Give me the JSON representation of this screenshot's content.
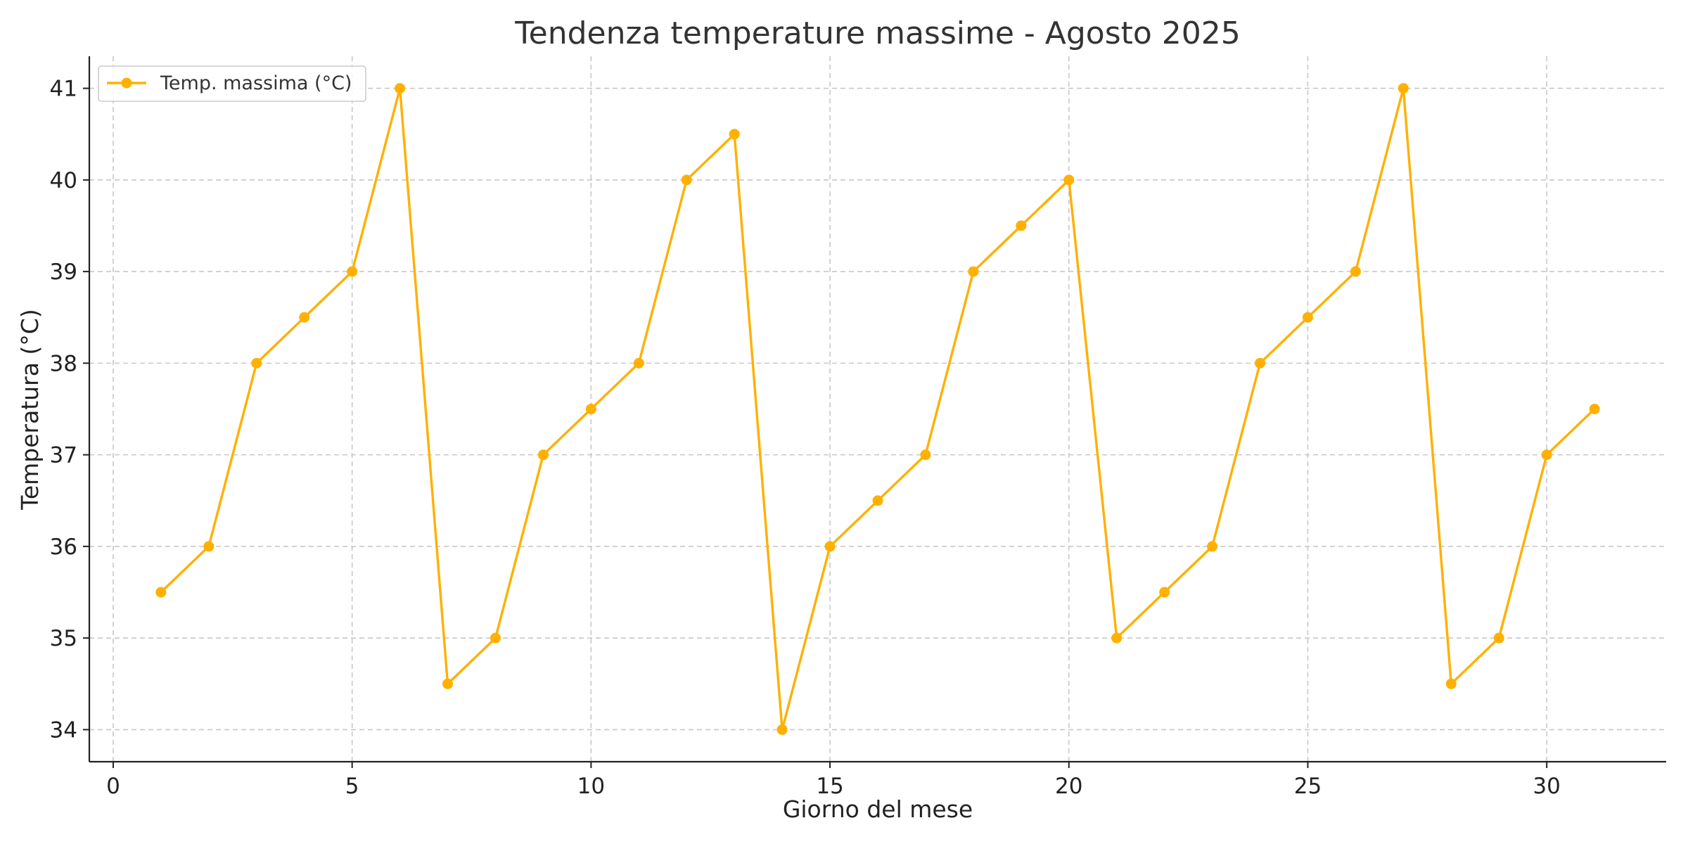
{
  "chart_data": {
    "type": "line",
    "title": "Tendenza temperature massime - Agosto 2025",
    "xlabel": "Giorno del mese",
    "ylabel": "Temperatura (°C)",
    "xlim": [
      -0.5,
      32.5
    ],
    "ylim": [
      33.65,
      41.35
    ],
    "xticks": [
      0,
      5,
      10,
      15,
      20,
      25,
      30
    ],
    "yticks": [
      34,
      35,
      36,
      37,
      38,
      39,
      40,
      41
    ],
    "grid": true,
    "legend_position": "top-left",
    "series": [
      {
        "name": "Temp. massima (°C)",
        "color": "#FFB000",
        "marker": "circle",
        "x": [
          1,
          2,
          3,
          4,
          5,
          6,
          7,
          8,
          9,
          10,
          11,
          12,
          13,
          14,
          15,
          16,
          17,
          18,
          19,
          20,
          21,
          22,
          23,
          24,
          25,
          26,
          27,
          28,
          29,
          30,
          31
        ],
        "y": [
          35.5,
          36,
          38,
          38.5,
          39,
          41,
          34.5,
          35,
          37,
          37.5,
          38,
          40,
          40.5,
          34,
          36,
          36.5,
          37,
          39,
          39.5,
          40,
          35,
          35.5,
          36,
          38,
          38.5,
          39,
          41,
          34.5,
          35,
          37,
          37.5
        ]
      }
    ]
  }
}
